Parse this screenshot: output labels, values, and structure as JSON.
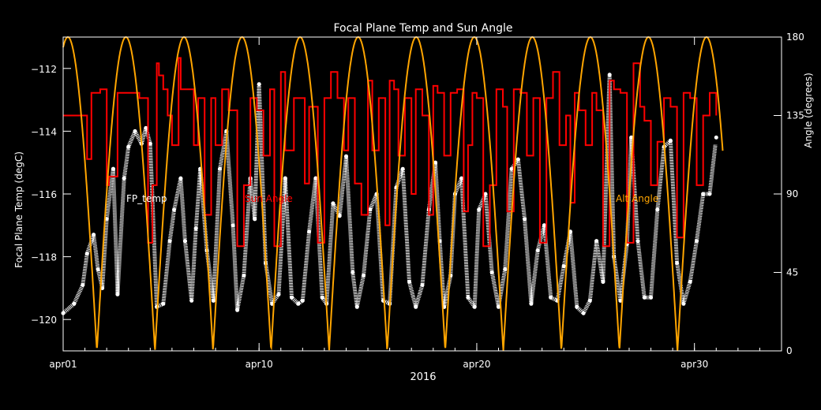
{
  "chart_data": {
    "type": "line",
    "title": "Focal Plane Temp and Sun Angle",
    "xlabel": "2016",
    "ylabel": "Focal Plane Temp (degC)",
    "y2label": "Angle (degrees)",
    "x_ticks": [
      {
        "day": 1,
        "label": "apr01"
      },
      {
        "day": 10,
        "label": "apr10"
      },
      {
        "day": 20,
        "label": "apr20"
      },
      {
        "day": 30,
        "label": "apr30"
      }
    ],
    "xlim": [
      1,
      34
    ],
    "ylim": [
      -121,
      -111
    ],
    "y_ticks": [
      -112,
      -114,
      -116,
      -118,
      -120
    ],
    "y2lim": [
      0,
      180
    ],
    "y2_ticks": [
      0,
      45,
      90,
      135,
      180
    ],
    "grid": false,
    "legend_labels": [
      {
        "text": "FP_temp",
        "color": "#ffffff"
      },
      {
        "text": "Sun Angle",
        "color": "#ff0000"
      },
      {
        "text": "Alt Angle",
        "color": "#ffa500"
      }
    ],
    "series": [
      {
        "axis": "left",
        "color": "#ffffff",
        "style": "scatter",
        "x": [
          1.0,
          1.5,
          1.9,
          2.1,
          2.4,
          2.6,
          2.8,
          3.0,
          3.3,
          3.5,
          3.8,
          4.0,
          4.3,
          4.6,
          4.8,
          5.0,
          5.3,
          5.6,
          5.9,
          6.1,
          6.4,
          6.6,
          6.9,
          7.1,
          7.3,
          7.6,
          7.9,
          8.2,
          8.5,
          8.8,
          9.0,
          9.3,
          9.6,
          9.8,
          10.0,
          10.3,
          10.6,
          10.9,
          11.2,
          11.5,
          11.8,
          12.0,
          12.3,
          12.6,
          12.9,
          13.1,
          13.4,
          13.7,
          14.0,
          14.3,
          14.5,
          14.8,
          15.1,
          15.4,
          15.7,
          16.0,
          16.3,
          16.6,
          16.9,
          17.2,
          17.5,
          17.8,
          18.1,
          18.3,
          18.5,
          18.8,
          19.0,
          19.3,
          19.6,
          19.9,
          20.1,
          20.4,
          20.7,
          21.0,
          21.3,
          21.6,
          21.9,
          22.2,
          22.5,
          22.8,
          23.1,
          23.4,
          23.7,
          24.0,
          24.3,
          24.6,
          24.9,
          25.2,
          25.5,
          25.8,
          26.1,
          26.3,
          26.6,
          26.9,
          27.1,
          27.4,
          27.7,
          28.0,
          28.3,
          28.6,
          28.9,
          29.2,
          29.5,
          29.8,
          30.1,
          30.4,
          30.7,
          31.0
        ],
        "y": [
          -119.8,
          -119.5,
          -118.9,
          -117.9,
          -117.3,
          -118.4,
          -119.0,
          -116.8,
          -115.2,
          -119.2,
          -115.5,
          -114.5,
          -114.0,
          -114.4,
          -113.9,
          -114.4,
          -119.6,
          -119.5,
          -117.5,
          -116.5,
          -115.5,
          -117.5,
          -119.4,
          -117.1,
          -115.2,
          -117.8,
          -119.4,
          -115.2,
          -114.0,
          -117.0,
          -119.7,
          -118.6,
          -115.5,
          -116.8,
          -112.5,
          -118.2,
          -119.5,
          -119.2,
          -115.5,
          -119.3,
          -119.5,
          -119.4,
          -117.2,
          -115.5,
          -119.3,
          -119.5,
          -116.3,
          -116.7,
          -114.8,
          -118.5,
          -119.6,
          -118.6,
          -116.5,
          -116.0,
          -119.4,
          -119.5,
          -115.8,
          -115.2,
          -118.8,
          -119.6,
          -118.9,
          -116.5,
          -115.0,
          -117.5,
          -119.6,
          -118.6,
          -116.0,
          -115.5,
          -119.3,
          -119.6,
          -116.5,
          -116.0,
          -118.5,
          -119.6,
          -118.4,
          -115.2,
          -114.9,
          -116.8,
          -119.5,
          -117.8,
          -117.0,
          -119.3,
          -119.4,
          -118.3,
          -117.2,
          -119.6,
          -119.8,
          -119.4,
          -117.5,
          -118.8,
          -112.2,
          -118.0,
          -119.4,
          -117.6,
          -114.2,
          -117.5,
          -119.3,
          -119.3,
          -116.5,
          -114.5,
          -114.3,
          -118.2,
          -119.5,
          -118.8,
          -117.5,
          -116.0,
          -116.0,
          -114.2
        ]
      },
      {
        "axis": "right",
        "color": "#ff0000",
        "style": "step",
        "x": [
          1.0,
          1.2,
          2.1,
          2.3,
          2.7,
          3.0,
          3.1,
          3.5,
          4.0,
          4.5,
          4.9,
          5.1,
          5.3,
          5.4,
          5.6,
          5.8,
          6.0,
          6.3,
          6.4,
          6.8,
          7.0,
          7.2,
          7.5,
          7.8,
          8.0,
          8.3,
          8.6,
          9.0,
          9.3,
          9.6,
          9.9,
          10.2,
          10.5,
          10.7,
          11.0,
          11.2,
          11.6,
          11.8,
          12.1,
          12.3,
          12.7,
          13.0,
          13.3,
          13.6,
          13.9,
          14.1,
          14.4,
          14.7,
          15.0,
          15.2,
          15.5,
          15.8,
          16.0,
          16.2,
          16.4,
          16.7,
          17.0,
          17.2,
          17.5,
          17.8,
          18.0,
          18.2,
          18.5,
          18.8,
          19.1,
          19.4,
          19.6,
          19.8,
          20.0,
          20.3,
          20.6,
          20.9,
          21.2,
          21.4,
          21.7,
          22.0,
          22.3,
          22.6,
          22.9,
          23.2,
          23.5,
          23.8,
          24.1,
          24.3,
          24.5,
          24.7,
          25.0,
          25.3,
          25.5,
          25.8,
          26.1,
          26.3,
          26.6,
          26.9,
          27.2,
          27.5,
          27.7,
          28.0,
          28.3,
          28.6,
          28.9,
          29.2,
          29.5,
          29.8,
          30.1,
          30.4,
          30.7,
          31.0
        ],
        "y": [
          135,
          135,
          110,
          148,
          150,
          95,
          100,
          148,
          148,
          145,
          62,
          95,
          165,
          158,
          150,
          135,
          118,
          168,
          150,
          150,
          118,
          145,
          78,
          145,
          118,
          150,
          138,
          60,
          95,
          145,
          138,
          112,
          150,
          60,
          160,
          115,
          145,
          145,
          96,
          140,
          62,
          145,
          160,
          145,
          115,
          145,
          96,
          78,
          155,
          115,
          145,
          72,
          155,
          150,
          112,
          145,
          90,
          150,
          135,
          78,
          152,
          148,
          112,
          148,
          150,
          80,
          118,
          148,
          145,
          60,
          95,
          150,
          140,
          80,
          150,
          148,
          112,
          145,
          62,
          145,
          160,
          118,
          135,
          85,
          148,
          138,
          118,
          148,
          138,
          60,
          155,
          150,
          148,
          62,
          165,
          140,
          132,
          95,
          120,
          145,
          140,
          65,
          148,
          145,
          95,
          135,
          148,
          135
        ]
      },
      {
        "axis": "right",
        "color": "#ffa500",
        "style": "line",
        "function": "abs_sine",
        "amplitude": 180,
        "period_days": 2.667,
        "zero_day": 2.55,
        "x_range": [
          1.0,
          31.3
        ]
      }
    ]
  }
}
